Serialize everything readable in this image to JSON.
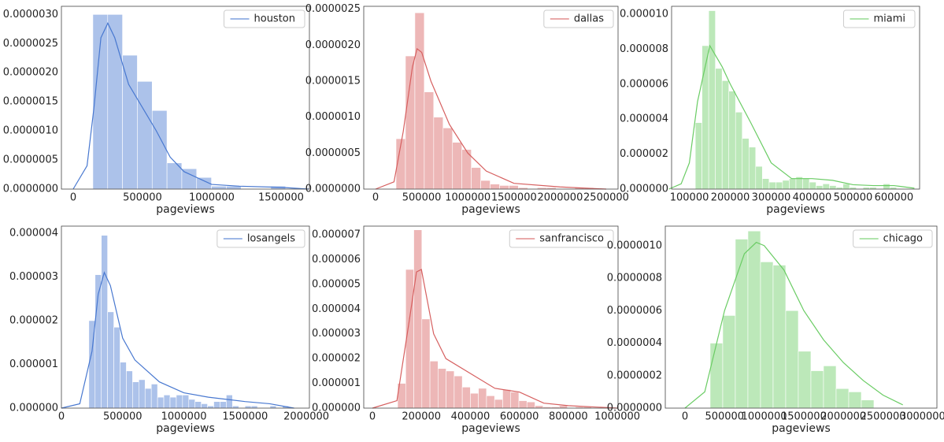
{
  "chart_data": [
    {
      "type": "histogram",
      "name": "houston",
      "color": "#4878d0",
      "xlabel": "pageviews",
      "legend": "upper right",
      "bins": [
        142000,
        249000,
        356000,
        463000,
        570000,
        677000,
        784000,
        891000,
        998000,
        1105000,
        1212000,
        1319000,
        1426000,
        1533000
      ],
      "counts": [
        3e-06,
        3e-06,
        2.3e-06,
        1.85e-06,
        1.35e-06,
        4.5e-07,
        3.5e-07,
        2e-07,
        5e-08,
        5e-08,
        0,
        0,
        5e-08
      ],
      "kde": {
        "x": [
          0,
          100000,
          150000,
          200000,
          250000,
          300000,
          400000,
          500000,
          600000,
          700000,
          800000,
          1000000,
          1200000,
          1500000,
          1700000
        ],
        "y": [
          0,
          4e-07,
          1.4e-06,
          2.6e-06,
          2.85e-06,
          2.6e-06,
          1.8e-06,
          1.4e-06,
          1e-06,
          5.5e-07,
          3e-07,
          8e-08,
          5e-08,
          3e-08,
          0
        ]
      },
      "xlim": [
        -85000,
        1705000
      ],
      "ylim": [
        0,
        3.14e-06
      ],
      "xticks": [
        0,
        500000,
        1000000,
        1500000
      ],
      "yticks": [
        {
          "value": 0,
          "label": "0.0000000"
        },
        {
          "value": 5e-07,
          "label": "0.0000005"
        },
        {
          "value": 1e-06,
          "label": "0.0000010"
        },
        {
          "value": 1.5e-06,
          "label": "0.0000015"
        },
        {
          "value": 2e-06,
          "label": "0.0000020"
        },
        {
          "value": 2.5e-06,
          "label": "0.0000025"
        },
        {
          "value": 3e-06,
          "label": "0.0000030"
        }
      ]
    },
    {
      "type": "histogram",
      "name": "dallas",
      "color": "#d65f5f",
      "xlabel": "pageviews",
      "legend": "upper right",
      "bins": [
        222000,
        324000,
        426000,
        528000,
        630000,
        732000,
        834000,
        936000,
        1038000,
        1140000,
        1242000,
        1344000,
        1446000,
        1548000,
        1650000,
        1752000,
        1854000,
        1956000,
        2058000,
        2160000,
        2262000,
        2364000
      ],
      "counts": [
        7e-07,
        1.85e-06,
        2.45e-06,
        1.35e-06,
        1e-06,
        8.5e-07,
        6.5e-07,
        5.5e-07,
        3e-07,
        1.2e-07,
        7e-08,
        5e-08,
        5e-08,
        2e-08,
        0,
        2e-08,
        2e-08,
        0,
        0,
        2e-08,
        2e-08
      ],
      "kde": {
        "x": [
          0,
          200000,
          300000,
          400000,
          450000,
          500000,
          600000,
          800000,
          1000000,
          1200000,
          1500000,
          2000000,
          2500000
        ],
        "y": [
          0,
          1e-07,
          8e-07,
          1.7e-06,
          1.95e-06,
          1.9e-06,
          1.5e-06,
          9e-07,
          5e-07,
          2.5e-07,
          8e-08,
          3e-08,
          0
        ]
      },
      "xlim": [
        -128000,
        2628000
      ],
      "ylim": [
        0,
        2.54e-06
      ],
      "xticks": [
        0,
        500000,
        1000000,
        1500000,
        2000000,
        2500000
      ],
      "yticks": [
        {
          "value": 0,
          "label": "0.0000000"
        },
        {
          "value": 5e-07,
          "label": "0.0000005"
        },
        {
          "value": 1e-06,
          "label": "0.0000010"
        },
        {
          "value": 1.5e-06,
          "label": "0.0000015"
        },
        {
          "value": 2e-06,
          "label": "0.0000020"
        },
        {
          "value": 2.5e-06,
          "label": "0.0000025"
        }
      ]
    },
    {
      "type": "histogram",
      "name": "miami",
      "color": "#6acc64",
      "xlabel": "pageviews",
      "legend": "upper right",
      "bins": [
        114500,
        130900,
        147300,
        163700,
        180100,
        196500,
        212900,
        229300,
        245700,
        262100,
        278500,
        294900,
        311300,
        327700,
        344100,
        360500,
        376900,
        393300,
        409700,
        426100,
        442500,
        458900,
        475300,
        491700,
        508100,
        524500,
        540900,
        557300,
        573700,
        590100,
        606500
      ],
      "counts": [
        3.8e-06,
        8.2e-06,
        1.02e-05,
        6.9e-06,
        6.2e-06,
        5.6e-06,
        4.4e-06,
        2.9e-06,
        2.4e-06,
        1.3e-06,
        6e-07,
        4e-07,
        4e-07,
        5e-07,
        6e-07,
        7e-07,
        6e-07,
        4e-07,
        2e-07,
        3e-07,
        2e-07,
        1e-07,
        3e-07,
        1e-07,
        0,
        1e-07,
        1e-07,
        0,
        3e-07,
        1e-07
      ],
      "kde": {
        "x": [
          50000,
          80000,
          100000,
          120000,
          150000,
          180000,
          200000,
          250000,
          300000,
          350000,
          400000,
          450000,
          500000,
          550000,
          600000,
          650000
        ],
        "y": [
          0,
          3e-07,
          1.5e-06,
          5e-06,
          8.2e-06,
          7e-06,
          6e-06,
          3.8e-06,
          1.5e-06,
          6e-07,
          6e-07,
          5e-07,
          2.5e-07,
          2e-07,
          2e-07,
          5e-08
        ]
      },
      "xlim": [
        56600,
        662700
      ],
      "ylim": [
        0,
        1.045e-05
      ],
      "xticks": [
        100000,
        200000,
        300000,
        400000,
        500000,
        600000
      ],
      "yticks": [
        {
          "value": 0,
          "label": "0.000000"
        },
        {
          "value": 2e-06,
          "label": "0.000002"
        },
        {
          "value": 4e-06,
          "label": "0.000004"
        },
        {
          "value": 6e-06,
          "label": "0.000006"
        },
        {
          "value": 8e-06,
          "label": "0.000008"
        },
        {
          "value": 1e-05,
          "label": "0.000010"
        }
      ]
    },
    {
      "type": "histogram",
      "name": "losangels",
      "color": "#4878d0",
      "xlabel": "pageviews",
      "legend": "upper right",
      "bins": [
        224000,
        275000,
        326000,
        377000,
        428000,
        479000,
        530000,
        581000,
        632000,
        683000,
        734000,
        785000,
        836000,
        887000,
        938000,
        989000,
        1040000,
        1091000,
        1142000,
        1193000,
        1244000,
        1295000,
        1346000,
        1397000,
        1448000,
        1499000,
        1550000,
        1601000,
        1652000,
        1703000,
        1754000,
        1805000,
        1856000
      ],
      "counts": [
        2e-06,
        3.05e-06,
        3.95e-06,
        2.2e-06,
        1.85e-06,
        1.05e-06,
        8.5e-07,
        6e-07,
        6.5e-07,
        4.5e-07,
        5.5e-07,
        2.5e-07,
        3e-07,
        2.5e-07,
        3e-07,
        3e-07,
        2e-07,
        1.5e-07,
        1e-07,
        5e-08,
        1.5e-07,
        1.5e-07,
        3e-07,
        5e-08,
        0,
        5e-08,
        5e-08,
        0,
        0,
        5e-08,
        0,
        5e-08
      ],
      "kde": {
        "x": [
          0,
          150000,
          250000,
          300000,
          350000,
          400000,
          500000,
          600000,
          800000,
          1000000,
          1200000,
          1500000,
          1700000,
          1900000
        ],
        "y": [
          0,
          1e-07,
          1.3e-06,
          2.6e-06,
          3.1e-06,
          2.8e-06,
          1.6e-06,
          1.1e-06,
          6e-07,
          3.5e-07,
          2.5e-07,
          1.5e-07,
          1e-07,
          0
        ]
      },
      "xlim": [
        0,
        2025000
      ],
      "ylim": [
        0,
        4.16e-06
      ],
      "xticks": [
        0,
        500000,
        1000000,
        1500000,
        2000000
      ],
      "yticks": [
        {
          "value": 0,
          "label": "0.000000"
        },
        {
          "value": 1e-06,
          "label": "0.000001"
        },
        {
          "value": 2e-06,
          "label": "0.000002"
        },
        {
          "value": 3e-06,
          "label": "0.000003"
        },
        {
          "value": 4e-06,
          "label": "0.000004"
        }
      ]
    },
    {
      "type": "histogram",
      "name": "sanfrancisco",
      "color": "#d65f5f",
      "xlabel": "pageviews",
      "legend": "upper right",
      "bins": [
        102900,
        135900,
        168900,
        201900,
        234900,
        267900,
        300900,
        333900,
        366900,
        399900,
        432900,
        465900,
        498900,
        531900,
        564900,
        597900,
        630900,
        663900,
        696900,
        729900,
        762900,
        795900,
        828900,
        861900,
        894900
      ],
      "counts": [
        1e-06,
        5.6e-06,
        7.2e-06,
        3.6e-06,
        1.9e-06,
        1.6e-06,
        1.5e-06,
        1.3e-06,
        8.5e-07,
        6e-07,
        8e-07,
        5e-07,
        3.5e-07,
        7.5e-07,
        6.5e-07,
        3e-07,
        2.5e-07,
        1e-07,
        5e-08,
        5e-08,
        1e-07,
        0,
        5e-08,
        5e-08
      ],
      "kde": {
        "x": [
          0,
          100000,
          150000,
          180000,
          200000,
          250000,
          300000,
          400000,
          500000,
          600000,
          700000,
          800000,
          900000,
          1000000
        ],
        "y": [
          0,
          3e-07,
          3.5e-06,
          5.5e-06,
          5.6e-06,
          3e-06,
          2e-06,
          1.4e-06,
          8e-07,
          6.5e-07,
          2e-07,
          1e-07,
          5e-08,
          0
        ]
      },
      "xlim": [
        -35400,
        1003000
      ],
      "ylim": [
        0,
        7.35e-06
      ],
      "xticks": [
        0,
        200000,
        400000,
        600000,
        800000,
        1000000
      ],
      "yticks": [
        {
          "value": 0,
          "label": "0.000000"
        },
        {
          "value": 1e-06,
          "label": "0.000001"
        },
        {
          "value": 2e-06,
          "label": "0.000002"
        },
        {
          "value": 3e-06,
          "label": "0.000003"
        },
        {
          "value": 4e-06,
          "label": "0.000004"
        },
        {
          "value": 5e-06,
          "label": "0.000005"
        },
        {
          "value": 6e-06,
          "label": "0.000006"
        },
        {
          "value": 7e-06,
          "label": "0.000007"
        }
      ]
    },
    {
      "type": "histogram",
      "name": "chicago",
      "color": "#6acc64",
      "xlabel": "pageviews",
      "legend": "upper right",
      "bins": [
        318000,
        477000,
        636000,
        795000,
        954000,
        1113000,
        1272000,
        1431000,
        1590000,
        1749000,
        1908000,
        2067000,
        2226000,
        2385000
      ],
      "counts": [
        4e-07,
        5.7e-07,
        1.04e-06,
        1.09e-06,
        9e-07,
        8.8e-07,
        6e-07,
        3.5e-07,
        2.3e-07,
        2.6e-07,
        1.2e-07,
        1e-07,
        5e-08
      ],
      "kde": {
        "x": [
          0,
          250000,
          500000,
          750000,
          900000,
          1000000,
          1250000,
          1500000,
          1750000,
          2000000,
          2250000,
          2500000,
          2750000
        ],
        "y": [
          0,
          1e-07,
          6e-07,
          9.5e-07,
          1.02e-06,
          1e-06,
          8.5e-07,
          6e-07,
          4.2e-07,
          2.8e-07,
          1.7e-07,
          8e-08,
          2e-08
        ]
      },
      "xlim": [
        -248000,
        3180000
      ],
      "ylim": [
        0,
        1.12e-06
      ],
      "xticks": [
        0,
        500000,
        1000000,
        1500000,
        2000000,
        2500000,
        3000000
      ],
      "yticks": [
        {
          "value": 0,
          "label": "0.0000000"
        },
        {
          "value": 2e-07,
          "label": "0.0000002"
        },
        {
          "value": 4e-07,
          "label": "0.0000004"
        },
        {
          "value": 6e-07,
          "label": "0.0000006"
        },
        {
          "value": 8e-07,
          "label": "0.0000008"
        },
        {
          "value": 1e-06,
          "label": "0.0000010"
        }
      ]
    }
  ]
}
